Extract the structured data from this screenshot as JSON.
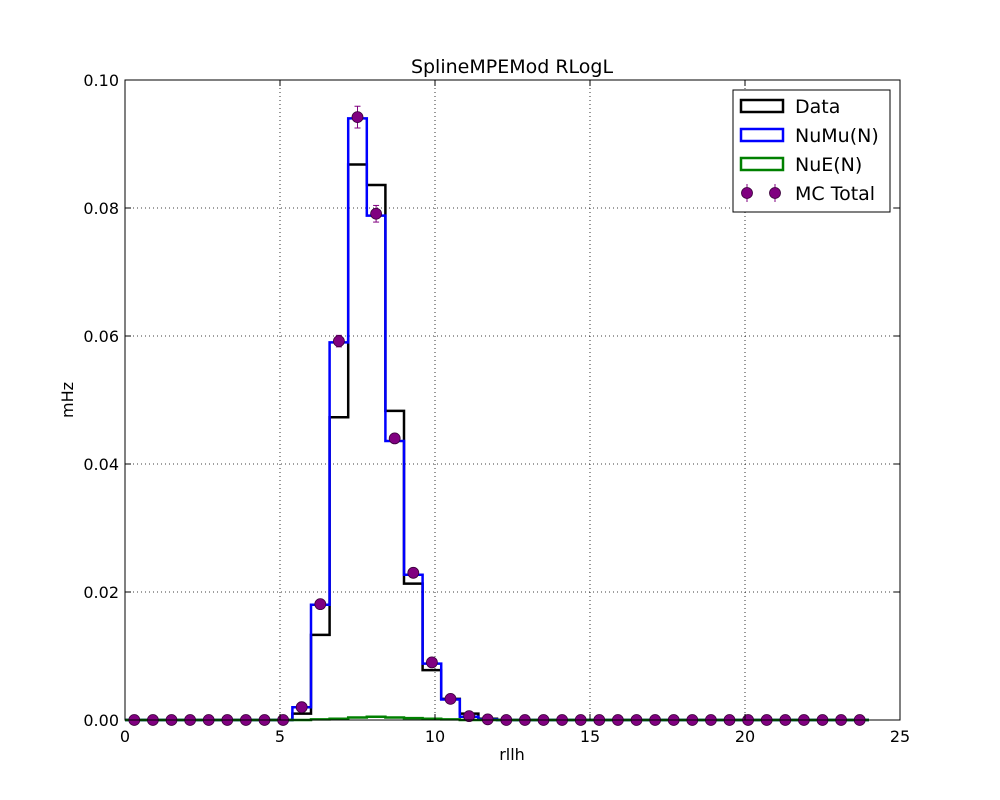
{
  "chart_data": {
    "type": "histogram",
    "title": "SplineMPEMod RLogL",
    "xlabel": "rllh",
    "ylabel": "mHz",
    "xlim": [
      0,
      25
    ],
    "ylim": [
      0,
      0.1
    ],
    "xticks": [
      "0",
      "5",
      "10",
      "15",
      "20",
      "25"
    ],
    "yticks": [
      "0.00",
      "0.02",
      "0.04",
      "0.06",
      "0.08",
      "0.10"
    ],
    "grid": true,
    "legend_position": "top-right",
    "bin_edges": [
      0.0,
      0.6,
      1.2,
      1.8,
      2.4,
      3.0,
      3.6,
      4.2,
      4.8,
      5.4,
      6.0,
      6.6,
      7.2,
      7.8,
      8.4,
      9.0,
      9.6,
      10.2,
      10.8,
      11.4,
      12.0,
      12.6,
      13.2,
      13.8,
      14.4,
      15.0,
      15.6,
      16.2,
      16.8,
      17.4,
      18.0,
      18.6,
      19.2,
      19.8,
      20.4,
      21.0,
      21.6,
      22.2,
      22.8,
      23.4,
      24.0
    ],
    "series": [
      {
        "name": "Data",
        "color": "#000000",
        "style": "step",
        "values": [
          0,
          0,
          0,
          0,
          0,
          0,
          0,
          0,
          0,
          0.001,
          0.0133,
          0.0473,
          0.0868,
          0.0836,
          0.0483,
          0.0213,
          0.0078,
          0.0033,
          0.001,
          0.0002,
          0,
          0,
          0,
          0,
          0,
          0,
          0,
          0,
          0,
          0,
          0,
          0,
          0,
          0,
          0,
          0,
          0,
          0,
          0,
          0
        ]
      },
      {
        "name": "NuMu(N)",
        "color": "#0000ff",
        "style": "step",
        "values": [
          0,
          0,
          0,
          0,
          0,
          0,
          0,
          0,
          0,
          0.002,
          0.018,
          0.059,
          0.094,
          0.0788,
          0.0436,
          0.0227,
          0.0088,
          0.0032,
          0.0005,
          0.0001,
          0,
          0,
          0,
          0,
          0,
          0,
          0,
          0,
          0,
          0,
          0,
          0,
          0,
          0,
          0,
          0,
          0,
          0,
          0,
          0
        ]
      },
      {
        "name": "NuE(N)",
        "color": "#008000",
        "style": "step",
        "values": [
          0,
          0,
          0,
          0,
          0,
          0,
          0,
          0,
          0,
          0,
          0.0001,
          0.0002,
          0.0004,
          0.0005,
          0.0004,
          0.0003,
          0.0002,
          0.0001,
          0,
          0,
          0,
          0,
          0,
          0,
          0,
          0,
          0,
          0,
          0,
          0,
          0,
          0,
          0,
          0,
          0,
          0,
          0,
          0,
          0,
          0
        ]
      },
      {
        "name": "MC Total",
        "color": "#800080",
        "style": "errorbar",
        "values": [
          0,
          0,
          0,
          0,
          0,
          0,
          0,
          0,
          0,
          0.002,
          0.0181,
          0.0592,
          0.0942,
          0.0791,
          0.044,
          0.023,
          0.009,
          0.0033,
          0.0006,
          0.0001,
          0,
          0,
          0,
          0,
          0,
          0,
          0,
          0,
          0,
          0,
          0,
          0,
          0,
          0,
          0,
          0,
          0,
          0,
          0,
          0
        ],
        "errors": [
          0,
          0,
          0,
          0,
          0,
          0,
          0,
          0,
          0,
          0.0002,
          0.0005,
          0.0009,
          0.0017,
          0.0013,
          0.0007,
          0.0005,
          0.0003,
          0.0002,
          0.0001,
          0,
          0,
          0,
          0,
          0,
          0,
          0,
          0,
          0,
          0,
          0,
          0,
          0,
          0,
          0,
          0,
          0,
          0,
          0,
          0,
          0
        ]
      }
    ]
  }
}
